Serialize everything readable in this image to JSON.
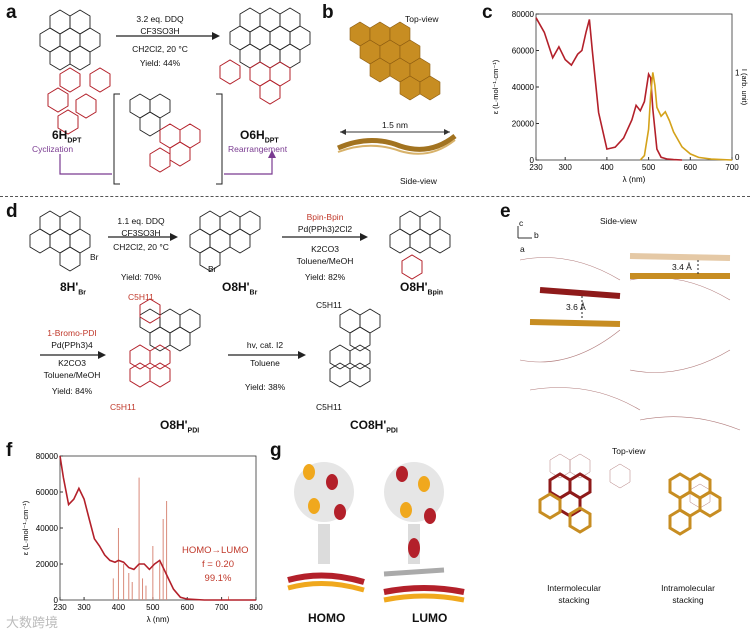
{
  "panels": {
    "a": "a",
    "b": "b",
    "c": "c",
    "d": "d",
    "e": "e",
    "f": "f",
    "g": "g"
  },
  "panel_a": {
    "reagent_line1": "3.2 eq. DDQ",
    "reagent_line2": "CF3SO3H",
    "reagent_line3": "CH2Cl2, 20 °C",
    "yield": "Yield: 44%",
    "start_label": "6H",
    "start_sub": "DPT",
    "product_label": "O6H",
    "product_sub": "DPT",
    "step1": "Cyclization",
    "step2": "Rearrangement"
  },
  "panel_b": {
    "top_view": "Top-view",
    "side_view": "Side-view",
    "scale": "1.5 nm"
  },
  "panel_d": {
    "r1_line1": "1.1 eq. DDQ",
    "r1_line2": "CF3SO3H",
    "r1_line3": "CH2Cl2, 20 °C",
    "r1_yield": "Yield: 70%",
    "r2_line1": "Bpin-Bpin",
    "r2_line2": "Pd(PPh3)2Cl2",
    "r2_line3": "K2CO3",
    "r2_line4": "Toluene/MeOH",
    "r2_yield": "Yield: 82%",
    "r3_line1": "1-Bromo-PDI",
    "r3_line2": "Pd(PPh3)4",
    "r3_line3": "K2CO3",
    "r3_line4": "Toluene/MeOH",
    "r3_yield": "Yield: 84%",
    "r4_line1": "hv, cat. I2",
    "r4_line2": "Toluene",
    "r4_yield": "Yield: 38%",
    "c1": "8H'",
    "c1_sub": "Br",
    "c2": "O8H'",
    "c2_sub": "Br",
    "c3": "O8H'",
    "c3_sub": "Bpin",
    "c4": "O8H'",
    "c4_sub": "PDI",
    "c5": "CO8H'",
    "c5_sub": "PDI",
    "br": "Br",
    "alkyl": "C5H11"
  },
  "panel_e": {
    "side_view": "Side-view",
    "top_view": "Top-view",
    "d1": "3.4 Å",
    "d2": "3.6 Å",
    "axis_c": "c",
    "axis_b": "b",
    "axis_a": "a",
    "inter": "Intermolecular stacking",
    "intra": "Intramolecular stacking"
  },
  "panel_g": {
    "homo": "HOMO",
    "lumo": "LUMO"
  },
  "watermark": "大数跨境",
  "colors": {
    "red": "#b3202a",
    "gold": "#d4a21a",
    "purple": "#7a3b91"
  },
  "chart_data": [
    {
      "id": "c",
      "type": "line",
      "xlabel": "λ (nm)",
      "ylabel": "ε (L·mol⁻¹·cm⁻¹)",
      "y2label": "I (arb. unit)",
      "xlim": [
        230,
        700
      ],
      "ylim": [
        0,
        80000
      ],
      "xticks": [
        230,
        300,
        400,
        500,
        600,
        700
      ],
      "yticks": [
        0,
        20000,
        40000,
        60000,
        80000
      ],
      "y2ticks": [
        0,
        1
      ],
      "series": [
        {
          "name": "absorption",
          "color": "#b3202a",
          "x": [
            230,
            250,
            270,
            285,
            300,
            315,
            330,
            340,
            350,
            358,
            365,
            380,
            400,
            420,
            440,
            460,
            470,
            480,
            490,
            500,
            505,
            510,
            520,
            530,
            545,
            560,
            580
          ],
          "y": [
            78000,
            70000,
            56000,
            62000,
            55000,
            52000,
            58000,
            60000,
            70000,
            77000,
            60000,
            26000,
            6000,
            7000,
            12000,
            22000,
            30000,
            27000,
            32000,
            47000,
            45000,
            28000,
            6000,
            1500,
            500,
            200,
            0
          ]
        },
        {
          "name": "emission (normalized)",
          "color": "#d4a21a",
          "x": [
            480,
            490,
            500,
            505,
            510,
            515,
            520,
            530,
            540,
            550,
            560,
            580,
            600,
            620,
            650,
            700
          ],
          "y": [
            0,
            0.05,
            0.35,
            0.75,
            1.0,
            0.85,
            0.6,
            0.5,
            0.55,
            0.45,
            0.32,
            0.15,
            0.07,
            0.03,
            0.01,
            0
          ]
        }
      ]
    },
    {
      "id": "f",
      "type": "line",
      "xlabel": "λ (nm)",
      "ylabel": "ε (L·mol⁻¹·cm⁻¹)",
      "xlim": [
        230,
        800
      ],
      "ylim": [
        0,
        80000
      ],
      "xticks": [
        230,
        300,
        400,
        500,
        600,
        700,
        800
      ],
      "yticks": [
        0,
        20000,
        40000,
        60000,
        80000
      ],
      "annotation_line1": "HOMO→LUMO",
      "annotation_line2": "f = 0.20",
      "annotation_line3": "99.1%",
      "series": [
        {
          "name": "absorption",
          "color": "#b3202a",
          "x": [
            230,
            240,
            255,
            270,
            285,
            300,
            315,
            330,
            345,
            360,
            375,
            390,
            400,
            415,
            430,
            445,
            460,
            475,
            490,
            505,
            520,
            535,
            545,
            560,
            580,
            600,
            650,
            700,
            800
          ],
          "y": [
            80000,
            68000,
            53000,
            56000,
            62000,
            56000,
            45000,
            34000,
            30000,
            25000,
            22000,
            21000,
            22000,
            21000,
            18000,
            17000,
            20000,
            20000,
            17000,
            20000,
            22000,
            16000,
            12000,
            6000,
            1500,
            500,
            0,
            0,
            0
          ]
        }
      ],
      "sticks_x": [
        385,
        400,
        415,
        430,
        440,
        460,
        470,
        480,
        500,
        520,
        530,
        540,
        720
      ],
      "sticks_y": [
        12000,
        40000,
        20000,
        15000,
        10000,
        68000,
        12000,
        8000,
        30000,
        21000,
        45000,
        55000,
        2000
      ]
    }
  ]
}
